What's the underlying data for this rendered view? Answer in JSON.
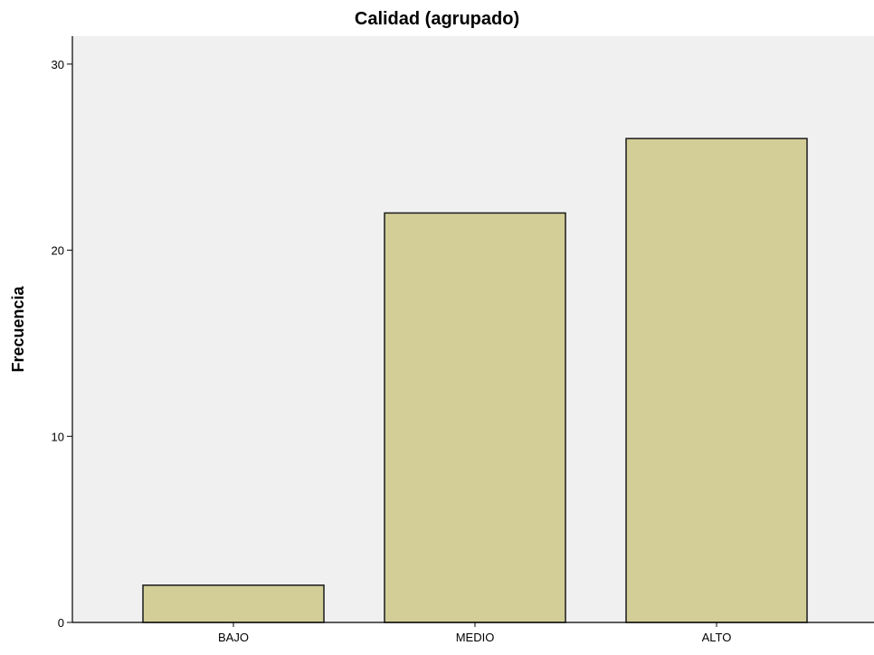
{
  "chart_data": {
    "type": "bar",
    "title": "Calidad (agrupado)",
    "xlabel": "",
    "ylabel": "Frecuencia",
    "categories": [
      "BAJO",
      "MEDIO",
      "ALTO"
    ],
    "values": [
      2,
      22,
      26
    ],
    "ylim": [
      0,
      31.5
    ],
    "yticks": [
      0,
      10,
      20,
      30
    ],
    "grid": false,
    "legend": "none"
  },
  "colors": {
    "plot_background": "#f0f0f0",
    "bar_fill": "#d3ce98",
    "bar_stroke": "#1a1a1a",
    "axis": "#000000"
  }
}
